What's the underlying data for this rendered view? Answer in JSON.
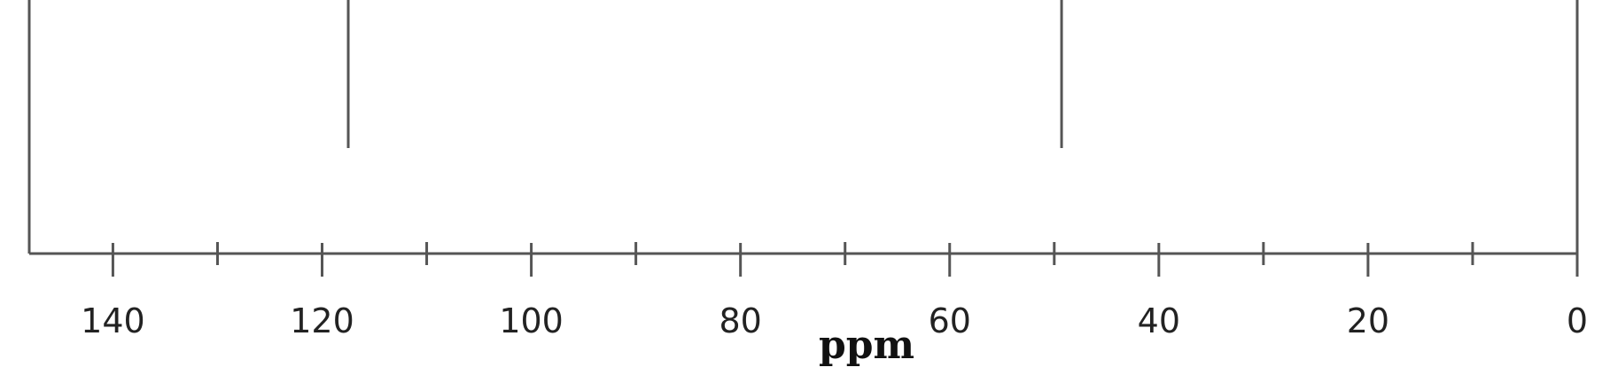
{
  "chart_data": {
    "type": "spectrum",
    "title": "",
    "xlabel": "ppm",
    "ylabel": "",
    "x_reversed": true,
    "xlim": [
      148,
      0
    ],
    "x_ticks_major": [
      140,
      120,
      100,
      80,
      60,
      40,
      20,
      0
    ],
    "x_tick_labels": [
      "140",
      "120",
      "100",
      "80",
      "60",
      "40",
      "20",
      "0"
    ],
    "x_ticks_minor": [
      130,
      110,
      90,
      70,
      50,
      30,
      10
    ],
    "peaks": [
      {
        "ppm": 117.5,
        "relative_height": 1.0
      },
      {
        "ppm": 49.3,
        "relative_height": 1.0
      }
    ],
    "grid": false,
    "legend": "none",
    "colors": {
      "axis": "#555555",
      "peak": "#555555",
      "text": "#222222"
    }
  }
}
